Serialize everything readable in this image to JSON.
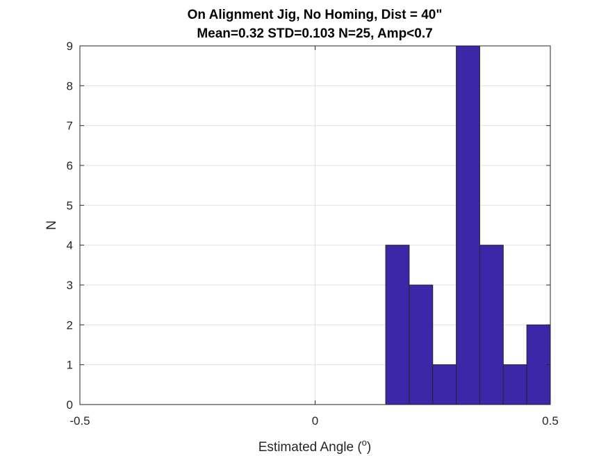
{
  "chart_data": {
    "type": "bar",
    "title": "On Alignment Jig, No Homing, Dist = 40\"",
    "subtitle": "Mean=0.32 STD=0.103 N=25, Amp<0.7",
    "xlabel_pre": "Estimated Angle (",
    "xlabel_sup": "o",
    "xlabel_post": ")",
    "ylabel": "N",
    "xlim": [
      -0.5,
      0.5
    ],
    "ylim": [
      0,
      9
    ],
    "xticks": [
      "-0.5",
      "0",
      "0.5"
    ],
    "xtick_values": [
      -0.5,
      0,
      0.5
    ],
    "yticks": [
      "0",
      "1",
      "2",
      "3",
      "4",
      "5",
      "6",
      "7",
      "8",
      "9"
    ],
    "yticks_values": [
      0,
      1,
      2,
      3,
      4,
      5,
      6,
      7,
      8,
      9
    ],
    "bin_edges": [
      0.15,
      0.2,
      0.25,
      0.3,
      0.35,
      0.4,
      0.45,
      0.5
    ],
    "values": [
      4,
      3,
      1,
      9,
      4,
      1,
      2
    ],
    "grid": true,
    "bar_color": "#3b27a8",
    "edge_color": "#262626"
  }
}
